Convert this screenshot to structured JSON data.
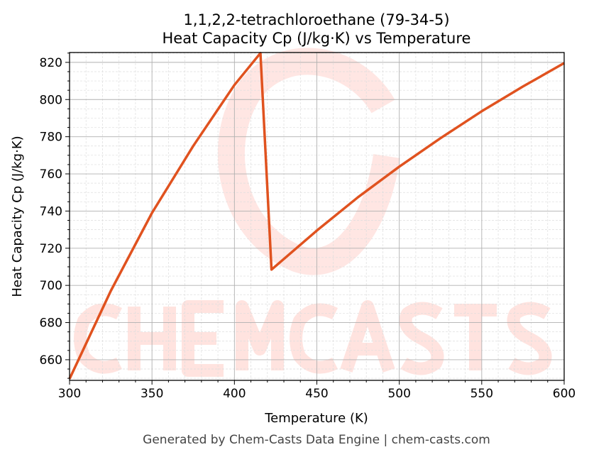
{
  "chart_data": {
    "type": "line",
    "title": "1,1,2,2-tetrachloroethane (79-34-5)",
    "subtitle": "Heat Capacity Cp (J/kg·K) vs Temperature",
    "xlabel": "Temperature (K)",
    "ylabel": "Heat Capacity Cp (J/kg·K)",
    "xlim": [
      300,
      600
    ],
    "ylim": [
      648.9,
      825.3
    ],
    "xticks": [
      300,
      350,
      400,
      450,
      500,
      550,
      600
    ],
    "yticks": [
      660,
      680,
      700,
      720,
      740,
      760,
      780,
      800,
      820
    ],
    "grid": true,
    "series": [
      {
        "color": "#e0521f",
        "x": [
          300,
          325,
          350,
          375,
          400,
          415.8,
          422.5,
          450,
          475,
          500,
          525,
          550,
          575,
          600
        ],
        "y": [
          649.7,
          697,
          739,
          775,
          807.8,
          825,
          708.5,
          729.5,
          747.5,
          763.9,
          779.2,
          793.7,
          807,
          819.6
        ]
      }
    ]
  },
  "footer": "Generated by Chem-Casts Data Engine | chem-casts.com",
  "watermark": "CHEMCASTS"
}
